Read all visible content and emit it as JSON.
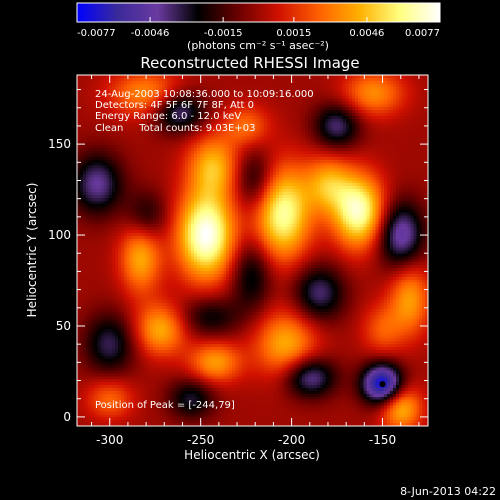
{
  "chart_data": {
    "type": "heatmap",
    "title": "Reconstructed RHESSI Image",
    "xlabel": "Heliocentric X (arcsec)",
    "ylabel": "Heliocentric Y (arcsec)",
    "xlim": [
      -318,
      -125
    ],
    "ylim": [
      -5,
      188
    ],
    "x_ticks": [
      -300,
      -250,
      -200,
      -150
    ],
    "y_ticks": [
      0,
      50,
      100,
      150
    ],
    "colorbar": {
      "min": -0.0077,
      "max": 0.0077,
      "ticks": [
        "-0.0077",
        "-0.0046",
        "-0.0015",
        "0.0015",
        "0.0046",
        "0.0077"
      ],
      "units_label": "(photons cm⁻² s⁻¹ asec⁻²)",
      "colors": [
        "#0000ff",
        "#3a2a9a",
        "#6a3aa0",
        "#000000",
        "#6a0000",
        "#d01000",
        "#ff6000",
        "#ffb000",
        "#ffff80",
        "#ffffff"
      ]
    },
    "annotations": [
      "24-Aug-2003 10:08:36.000 to 10:09:16.000",
      "Detectors: 4F 5F 6F 7F 8F, Att 0",
      "Energy Range: 6.0 - 12.0 keV",
      "Clean     Total counts: 9.03E+03"
    ],
    "peak_label": "Position of Peak = [-244,79]",
    "peak_position": [
      -244,
      79
    ],
    "blob_sources": [
      {
        "x": -247,
        "y": 100,
        "amp": 1.0,
        "sx": 11,
        "sy": 17
      },
      {
        "x": -243,
        "y": 138,
        "amp": 0.55,
        "sx": 10,
        "sy": 12
      },
      {
        "x": -205,
        "y": 112,
        "amp": 0.85,
        "sx": 11,
        "sy": 18
      },
      {
        "x": -203,
        "y": 40,
        "amp": 0.55,
        "sx": 12,
        "sy": 13
      },
      {
        "x": -163,
        "y": 113,
        "amp": 0.9,
        "sx": 10,
        "sy": 14
      },
      {
        "x": -180,
        "y": 128,
        "amp": 0.5,
        "sx": 9,
        "sy": 11
      },
      {
        "x": -283,
        "y": 88,
        "amp": 0.55,
        "sx": 8,
        "sy": 14
      },
      {
        "x": -272,
        "y": 48,
        "amp": 0.55,
        "sx": 10,
        "sy": 10
      },
      {
        "x": -242,
        "y": 30,
        "amp": 0.5,
        "sx": 10,
        "sy": 8
      },
      {
        "x": -280,
        "y": 178,
        "amp": 0.45,
        "sx": 14,
        "sy": 9
      },
      {
        "x": -155,
        "y": 178,
        "amp": 0.45,
        "sx": 12,
        "sy": 9
      },
      {
        "x": -225,
        "y": 160,
        "amp": 0.35,
        "sx": 9,
        "sy": 8
      },
      {
        "x": -135,
        "y": 65,
        "amp": 0.5,
        "sx": 8,
        "sy": 14
      },
      {
        "x": -140,
        "y": 5,
        "amp": 0.6,
        "sx": 8,
        "sy": 9
      },
      {
        "x": -300,
        "y": 10,
        "amp": 0.35,
        "sx": 9,
        "sy": 8
      },
      {
        "x": -150,
        "y": 48,
        "amp": 0.3,
        "sx": 8,
        "sy": 10
      },
      {
        "x": -307,
        "y": 128,
        "amp": -0.55,
        "sx": 10,
        "sy": 12
      },
      {
        "x": -220,
        "y": 130,
        "amp": -0.4,
        "sx": 8,
        "sy": 12
      },
      {
        "x": -222,
        "y": 78,
        "amp": -0.4,
        "sx": 8,
        "sy": 14
      },
      {
        "x": -140,
        "y": 100,
        "amp": -0.65,
        "sx": 9,
        "sy": 13
      },
      {
        "x": -185,
        "y": 68,
        "amp": -0.5,
        "sx": 10,
        "sy": 11
      },
      {
        "x": -190,
        "y": 22,
        "amp": -0.6,
        "sx": 10,
        "sy": 8
      },
      {
        "x": -150,
        "y": 18,
        "amp": -1.0,
        "sx": 8,
        "sy": 8
      },
      {
        "x": -262,
        "y": 168,
        "amp": -0.55,
        "sx": 10,
        "sy": 8
      },
      {
        "x": -300,
        "y": 40,
        "amp": -0.45,
        "sx": 10,
        "sy": 12
      },
      {
        "x": -255,
        "y": 10,
        "amp": -0.4,
        "sx": 9,
        "sy": 8
      },
      {
        "x": -175,
        "y": 160,
        "amp": -0.5,
        "sx": 9,
        "sy": 9
      },
      {
        "x": -280,
        "y": 110,
        "amp": -0.35,
        "sx": 8,
        "sy": 10
      },
      {
        "x": -245,
        "y": 55,
        "amp": -0.35,
        "sx": 12,
        "sy": 8
      }
    ]
  },
  "footer": {
    "timestamp": "8-Jun-2013 04:22"
  }
}
